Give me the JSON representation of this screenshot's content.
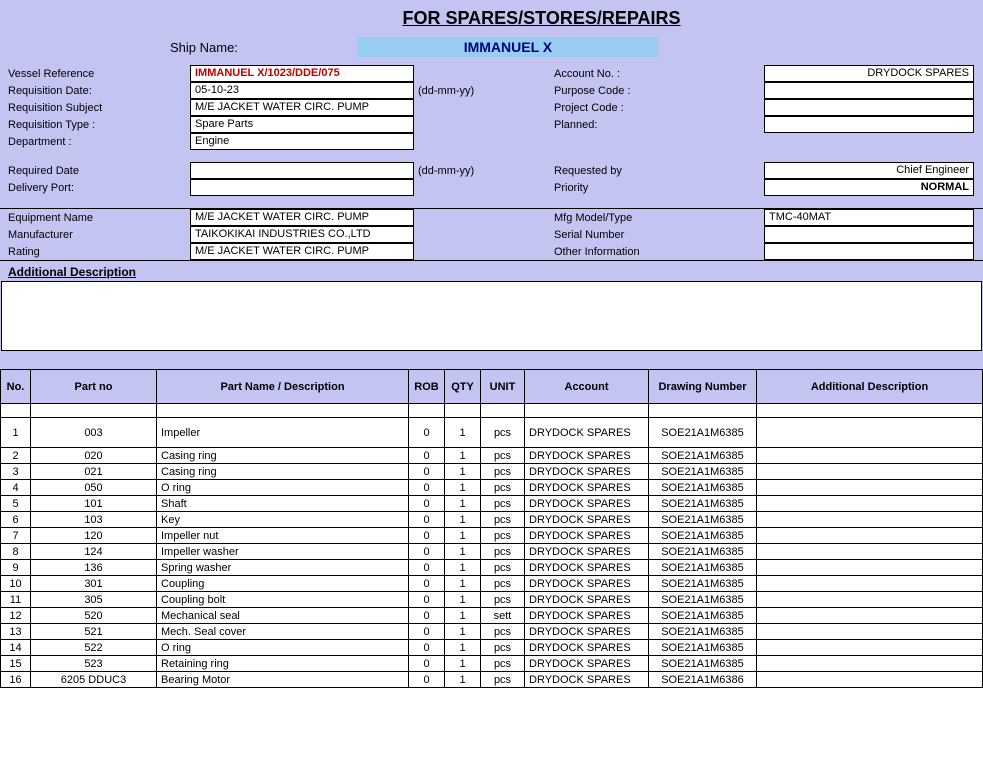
{
  "title": "FOR SPARES/STORES/REPAIRS",
  "ship_name_label": "Ship Name:",
  "ship_name": "IMMANUEL X",
  "fields_left": [
    {
      "label": "Vessel Reference",
      "value": "IMMANUEL X/1023/DDE/075",
      "red": true,
      "hint": ""
    },
    {
      "label": "Requisition Date:",
      "value": "05-10-23",
      "red": false,
      "hint": "(dd-mm-yy)"
    },
    {
      "label": "Requisition Subject",
      "value": "M/E JACKET WATER CIRC. PUMP",
      "red": false,
      "hint": ""
    },
    {
      "label": "Requisition Type :",
      "value": "Spare Parts",
      "red": false,
      "hint": ""
    },
    {
      "label": "Department :",
      "value": "Engine",
      "red": false,
      "hint": ""
    }
  ],
  "fields_right": [
    {
      "label": "Account No. :",
      "value": "DRYDOCK SPARES"
    },
    {
      "label": "Purpose Code :",
      "value": ""
    },
    {
      "label": "Project Code :",
      "value": ""
    },
    {
      "label": "Planned:",
      "value": ""
    }
  ],
  "fields2_left": [
    {
      "label": "Required Date",
      "value": "",
      "hint": "(dd-mm-yy)"
    },
    {
      "label": "Delivery Port:",
      "value": "",
      "hint": ""
    }
  ],
  "fields2_right": [
    {
      "label": "Requested by",
      "value": "Chief Engineer"
    },
    {
      "label": "Priority",
      "value": "NORMAL",
      "bold": true
    }
  ],
  "equip_left": [
    {
      "label": "Equipment Name",
      "value": "M/E JACKET WATER CIRC. PUMP"
    },
    {
      "label": "Manufacturer",
      "value": "TAIKOKIKAI INDUSTRIES CO.,LTD"
    },
    {
      "label": "Rating",
      "value": "M/E JACKET WATER CIRC. PUMP"
    }
  ],
  "equip_right": [
    {
      "label": "Mfg Model/Type",
      "value": "TMC-40MAT"
    },
    {
      "label": "Serial Number",
      "value": ""
    },
    {
      "label": "Other Information",
      "value": ""
    }
  ],
  "addl_title": "Additional Description",
  "parts_headers": {
    "no": "No.",
    "partno": "Part no",
    "desc": "Part Name / Description",
    "rob": "ROB",
    "qty": "QTY",
    "unit": "UNIT",
    "acct": "Account",
    "draw": "Drawing Number",
    "addl": "Additional Description"
  },
  "parts": [
    {
      "no": "1",
      "partno": "003",
      "desc": "Impeller",
      "rob": "0",
      "qty": "1",
      "unit": "pcs",
      "acct": "DRYDOCK SPARES",
      "draw": "SOE21A1M6385",
      "addl": "",
      "tall": true
    },
    {
      "no": "2",
      "partno": "020",
      "desc": "Casing ring",
      "rob": "0",
      "qty": "1",
      "unit": "pcs",
      "acct": "DRYDOCK SPARES",
      "draw": "SOE21A1M6385",
      "addl": ""
    },
    {
      "no": "3",
      "partno": "021",
      "desc": "Casing ring",
      "rob": "0",
      "qty": "1",
      "unit": "pcs",
      "acct": "DRYDOCK SPARES",
      "draw": "SOE21A1M6385",
      "addl": ""
    },
    {
      "no": "4",
      "partno": "050",
      "desc": "O ring",
      "rob": "0",
      "qty": "1",
      "unit": "pcs",
      "acct": "DRYDOCK SPARES",
      "draw": "SOE21A1M6385",
      "addl": ""
    },
    {
      "no": "5",
      "partno": "101",
      "desc": "Shaft",
      "rob": "0",
      "qty": "1",
      "unit": "pcs",
      "acct": "DRYDOCK SPARES",
      "draw": "SOE21A1M6385",
      "addl": ""
    },
    {
      "no": "6",
      "partno": "103",
      "desc": "Key",
      "rob": "0",
      "qty": "1",
      "unit": "pcs",
      "acct": "DRYDOCK SPARES",
      "draw": "SOE21A1M6385",
      "addl": ""
    },
    {
      "no": "7",
      "partno": "120",
      "desc": "Impeller nut",
      "rob": "0",
      "qty": "1",
      "unit": "pcs",
      "acct": "DRYDOCK SPARES",
      "draw": "SOE21A1M6385",
      "addl": ""
    },
    {
      "no": "8",
      "partno": "124",
      "desc": "Impeller washer",
      "rob": "0",
      "qty": "1",
      "unit": "pcs",
      "acct": "DRYDOCK SPARES",
      "draw": "SOE21A1M6385",
      "addl": ""
    },
    {
      "no": "9",
      "partno": "136",
      "desc": "Spring washer",
      "rob": "0",
      "qty": "1",
      "unit": "pcs",
      "acct": "DRYDOCK SPARES",
      "draw": "SOE21A1M6385",
      "addl": ""
    },
    {
      "no": "10",
      "partno": "301",
      "desc": "Coupling",
      "rob": "0",
      "qty": "1",
      "unit": "pcs",
      "acct": "DRYDOCK SPARES",
      "draw": "SOE21A1M6385",
      "addl": ""
    },
    {
      "no": "11",
      "partno": "305",
      "desc": "Coupling bolt",
      "rob": "0",
      "qty": "1",
      "unit": "pcs",
      "acct": "DRYDOCK SPARES",
      "draw": "SOE21A1M6385",
      "addl": ""
    },
    {
      "no": "12",
      "partno": "520",
      "desc": "Mechanical seal",
      "rob": "0",
      "qty": "1",
      "unit": "sett",
      "acct": "DRYDOCK SPARES",
      "draw": "SOE21A1M6385",
      "addl": ""
    },
    {
      "no": "13",
      "partno": "521",
      "desc": "Mech. Seal cover",
      "rob": "0",
      "qty": "1",
      "unit": "pcs",
      "acct": "DRYDOCK SPARES",
      "draw": "SOE21A1M6385",
      "addl": ""
    },
    {
      "no": "14",
      "partno": "522",
      "desc": "O ring",
      "rob": "0",
      "qty": "1",
      "unit": "pcs",
      "acct": "DRYDOCK SPARES",
      "draw": "SOE21A1M6385",
      "addl": ""
    },
    {
      "no": "15",
      "partno": "523",
      "desc": "Retaining ring",
      "rob": "0",
      "qty": "1",
      "unit": "pcs",
      "acct": "DRYDOCK SPARES",
      "draw": "SOE21A1M6385",
      "addl": ""
    },
    {
      "no": "16",
      "partno": "6205 DDUC3",
      "desc": "Bearing Motor",
      "rob": "0",
      "qty": "1",
      "unit": "pcs",
      "acct": "DRYDOCK SPARES",
      "draw": "SOE21A1M6386",
      "addl": ""
    }
  ]
}
